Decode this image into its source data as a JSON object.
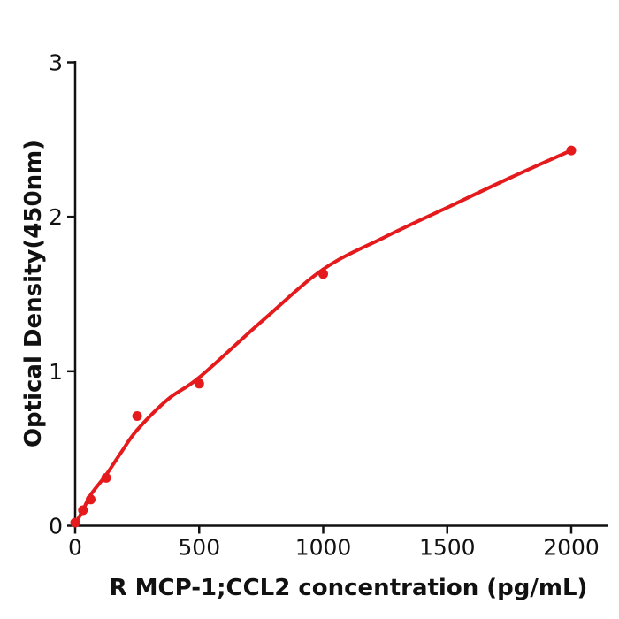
{
  "figure": {
    "kind": "ELISA standard curve plot",
    "colors": {
      "background": "#ffffff",
      "curve_red": "#e41a1c",
      "ink": "#111111"
    }
  },
  "chart_data": {
    "type": "scatter",
    "subtype": "standard-curve-with-fitted-line",
    "title": "",
    "xlabel": "R  MCP-1;CCL2 concentration (pg/mL)",
    "ylabel": "Optical Density(450nm)",
    "xlim": [
      0,
      2150
    ],
    "ylim": [
      0,
      3
    ],
    "x_ticks": [
      0,
      500,
      1000,
      1500,
      2000
    ],
    "y_ticks": [
      0,
      1,
      2,
      3
    ],
    "grid": false,
    "legend": "none",
    "series": [
      {
        "name": "standard data points",
        "type": "scatter",
        "color": "#e41a1c",
        "x": [
          0,
          31.25,
          62.5,
          125,
          250,
          500,
          1000,
          2000
        ],
        "y": [
          0.02,
          0.1,
          0.17,
          0.31,
          0.71,
          0.92,
          1.63,
          2.43
        ]
      },
      {
        "name": "fitted curve",
        "type": "line",
        "color": "#e41a1c",
        "x": [
          0,
          31.25,
          62.5,
          125,
          187.5,
          250,
          375,
          500,
          750,
          1000,
          1250,
          1500,
          1750,
          2000
        ],
        "y": [
          0.01,
          0.1,
          0.2,
          0.33,
          0.48,
          0.62,
          0.82,
          0.96,
          1.32,
          1.66,
          1.87,
          2.06,
          2.25,
          2.43
        ]
      }
    ]
  }
}
